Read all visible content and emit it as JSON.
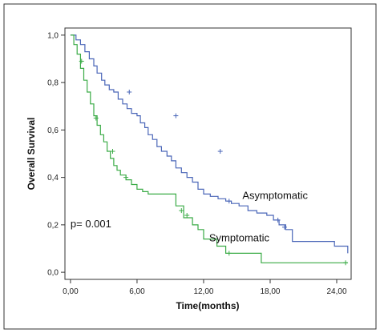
{
  "chart_data": {
    "type": "line",
    "xlabel": "Time(months)",
    "ylabel": "Overall Survival",
    "xlim": [
      -0.5,
      25.3
    ],
    "ylim": [
      -0.03,
      1.03
    ],
    "x_ticks": [
      0,
      6,
      12,
      18,
      24
    ],
    "x_tick_labels": [
      "0,00",
      "6,00",
      "12,00",
      "18,00",
      "24,00"
    ],
    "y_ticks": [
      0,
      0.2,
      0.4,
      0.6,
      0.8,
      1.0
    ],
    "y_tick_labels": [
      "0,0",
      "0,2",
      "0,4",
      "0,6",
      "0,8",
      "1,0"
    ],
    "grid": false,
    "annotations": [
      {
        "text": "p= 0.001",
        "x": 0.0,
        "y": 0.19
      },
      {
        "text": "Asymptomatic",
        "x": 15.5,
        "y": 0.31
      },
      {
        "text": "Symptomatic",
        "x": 12.5,
        "y": 0.13
      }
    ],
    "series": [
      {
        "color": "#4a66b8",
        "x": [
          0,
          0.5,
          0.9,
          1.3,
          1.7,
          2.1,
          2.4,
          2.8,
          3.1,
          3.5,
          3.9,
          4.3,
          4.7,
          5.1,
          5.5,
          6.0,
          6.3,
          6.7,
          7.0,
          7.4,
          7.8,
          8.2,
          8.7,
          9.1,
          9.5,
          10.0,
          10.5,
          11.0,
          11.5,
          12.0,
          12.6,
          13.3,
          14.0,
          14.5,
          15.2,
          16.0,
          16.8,
          17.7,
          18.3,
          18.8,
          19.4,
          20.0,
          23.8,
          25.0
        ],
        "y": [
          1.0,
          0.98,
          0.96,
          0.93,
          0.9,
          0.87,
          0.84,
          0.81,
          0.79,
          0.77,
          0.76,
          0.73,
          0.71,
          0.69,
          0.67,
          0.66,
          0.63,
          0.61,
          0.58,
          0.56,
          0.53,
          0.51,
          0.49,
          0.47,
          0.44,
          0.42,
          0.4,
          0.38,
          0.35,
          0.33,
          0.32,
          0.31,
          0.3,
          0.29,
          0.28,
          0.26,
          0.25,
          0.24,
          0.22,
          0.2,
          0.18,
          0.13,
          0.11,
          0.08
        ],
        "censor_x": [
          5.3,
          9.5,
          13.5,
          14.3,
          18.7,
          19.3
        ],
        "censor_y": [
          0.76,
          0.66,
          0.51,
          0.3,
          0.22,
          0.19
        ]
      },
      {
        "color": "#3aab46",
        "x": [
          0,
          0.3,
          0.6,
          0.9,
          1.2,
          1.5,
          1.8,
          2.1,
          2.4,
          2.7,
          3.0,
          3.3,
          3.6,
          3.9,
          4.2,
          4.5,
          5.0,
          5.5,
          6.0,
          6.5,
          7.0,
          8.0,
          9.0,
          9.5,
          10.2,
          11.0,
          11.5,
          12.0,
          12.5,
          13.2,
          14.0,
          16.0,
          17.2,
          24.8,
          25.0
        ],
        "y": [
          1.0,
          0.96,
          0.92,
          0.86,
          0.81,
          0.76,
          0.71,
          0.66,
          0.62,
          0.58,
          0.55,
          0.51,
          0.48,
          0.45,
          0.43,
          0.41,
          0.39,
          0.37,
          0.35,
          0.34,
          0.33,
          0.33,
          0.33,
          0.28,
          0.23,
          0.2,
          0.18,
          0.14,
          0.14,
          0.11,
          0.08,
          0.08,
          0.04,
          0.04,
          0.04
        ],
        "censor_x": [
          1.0,
          2.3,
          3.8,
          5.0,
          10.0,
          10.5,
          14.3,
          24.8
        ],
        "censor_y": [
          0.89,
          0.65,
          0.51,
          0.4,
          0.26,
          0.24,
          0.08,
          0.04
        ]
      }
    ]
  }
}
